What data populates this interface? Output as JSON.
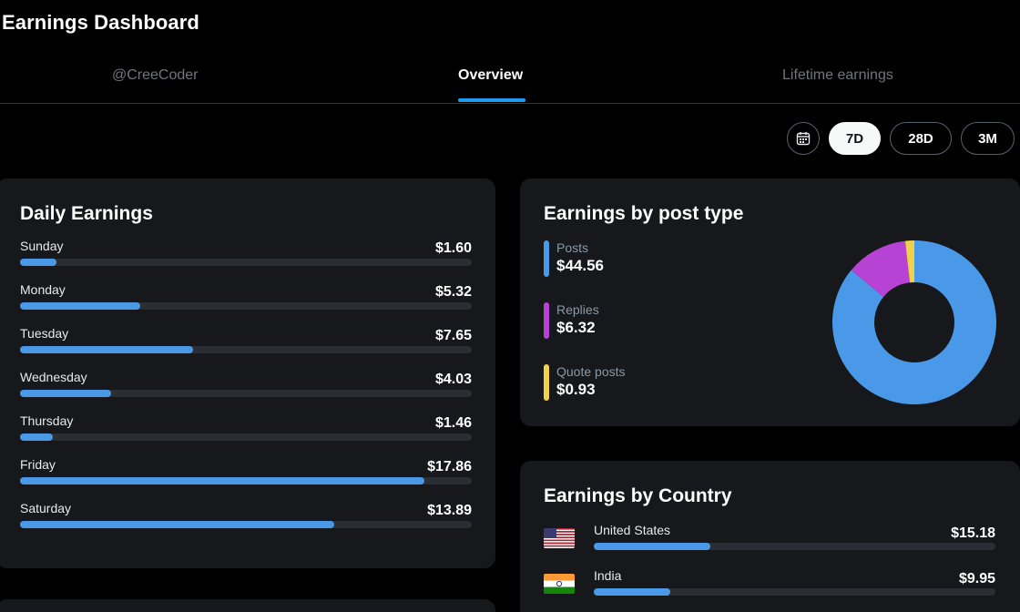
{
  "page": {
    "title": "Earnings Dashboard"
  },
  "tabs": [
    {
      "label": "@CreeCoder",
      "active": false
    },
    {
      "label": "Overview",
      "active": true
    },
    {
      "label": "Lifetime earnings",
      "active": false
    }
  ],
  "range": {
    "options": [
      "7D",
      "28D",
      "3M"
    ],
    "selected": "7D",
    "calendar_icon": "calendar-icon"
  },
  "daily": {
    "title": "Daily Earnings",
    "days": [
      {
        "label": "Sunday",
        "value": "$1.60",
        "amount": 1.6
      },
      {
        "label": "Monday",
        "value": "$5.32",
        "amount": 5.32
      },
      {
        "label": "Tuesday",
        "value": "$7.65",
        "amount": 7.65
      },
      {
        "label": "Wednesday",
        "value": "$4.03",
        "amount": 4.03
      },
      {
        "label": "Thursday",
        "value": "$1.46",
        "amount": 1.46
      },
      {
        "label": "Friday",
        "value": "$17.86",
        "amount": 17.86
      },
      {
        "label": "Saturday",
        "value": "$13.89",
        "amount": 13.89
      }
    ]
  },
  "post_type": {
    "title": "Earnings by post type",
    "items": [
      {
        "label": "Posts",
        "value": "$44.56",
        "amount": 44.56,
        "color": "#4a99e9"
      },
      {
        "label": "Replies",
        "value": "$6.32",
        "amount": 6.32,
        "color": "#b743d4"
      },
      {
        "label": "Quote posts",
        "value": "$0.93",
        "amount": 0.93,
        "color": "#f0d14a"
      }
    ]
  },
  "country": {
    "title": "Earnings by Country",
    "items": [
      {
        "name": "United States",
        "value": "$15.18",
        "amount": 15.18,
        "flag": "us-flag-icon"
      },
      {
        "name": "India",
        "value": "$9.95",
        "amount": 9.95,
        "flag": "india-flag-icon"
      }
    ]
  },
  "colors": {
    "accent": "#1d9bf0",
    "bar": "#4a99e9",
    "card": "#16181c",
    "track": "#2a2d31"
  }
}
